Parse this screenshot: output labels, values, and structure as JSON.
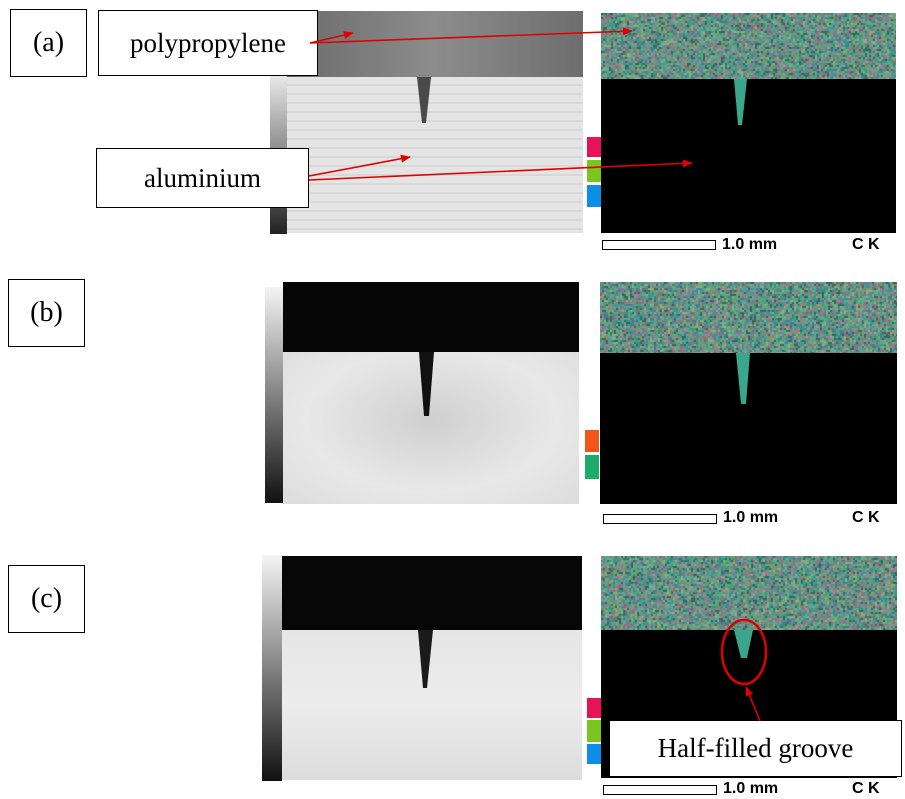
{
  "panels": {
    "a": {
      "label": "(a)"
    },
    "b": {
      "label": "(b)"
    },
    "c": {
      "label": "(c)"
    }
  },
  "callouts": {
    "polypropylene": "polypropylene",
    "aluminium": "aluminium",
    "half_filled_groove": "Half-filled groove"
  },
  "scale": {
    "text": "1.0 mm",
    "element": "C K"
  },
  "colors": {
    "arrow": "#e00000",
    "swatch_magenta": "#e8125a",
    "swatch_green": "#7ac61e",
    "swatch_blue": "#0a8ee8",
    "swatch_orange": "#f0561a",
    "swatch_teal": "#1aae6a"
  }
}
